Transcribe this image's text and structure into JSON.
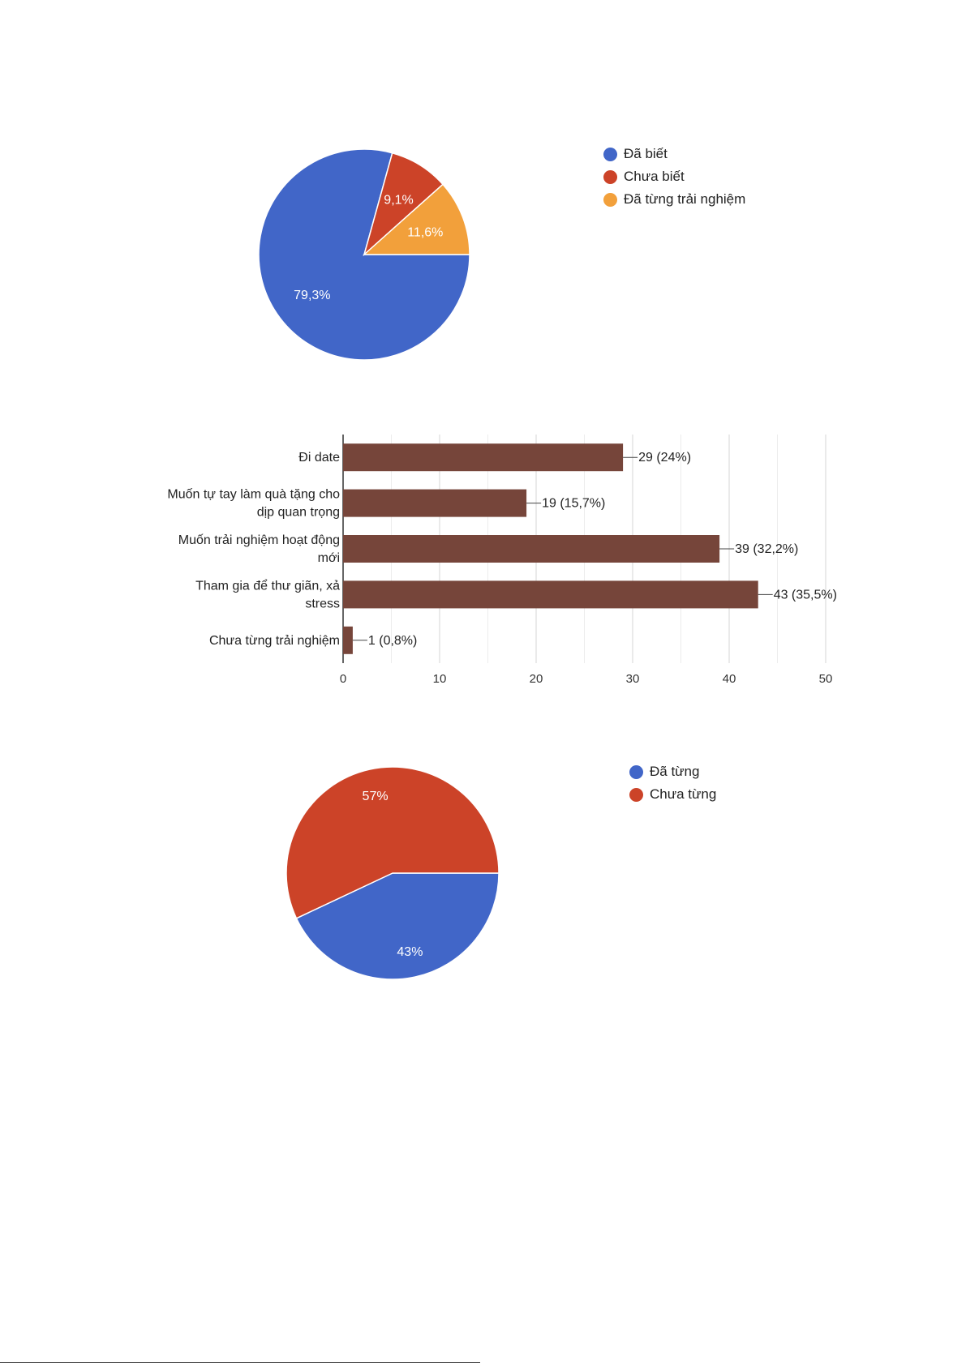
{
  "chart_data": [
    {
      "type": "pie",
      "labels": [
        "Đã biết",
        "Chưa biết",
        "Đã từng trải nghiệm"
      ],
      "values": [
        79.3,
        9.1,
        11.6
      ],
      "value_labels": [
        "79,3%",
        "9,1%",
        "11,6%"
      ],
      "colors": [
        "#4166c8",
        "#cc4328",
        "#f2a03b"
      ],
      "legend_position": "right"
    },
    {
      "type": "bar",
      "orientation": "horizontal",
      "categories": [
        [
          "Đi date"
        ],
        [
          "Muốn tự tay làm quà tặng cho",
          "dịp quan trọng"
        ],
        [
          "Muốn trải nghiệm hoạt động",
          "mới"
        ],
        [
          "Tham gia để thư giãn, xả",
          "stress"
        ],
        [
          "Chưa từng trải nghiệm"
        ]
      ],
      "values": [
        29,
        19,
        39,
        43,
        1
      ],
      "value_labels": [
        "29 (24%)",
        "19 (15,7%)",
        "39 (32,2%)",
        "43 (35,5%)",
        "1 (0,8%)"
      ],
      "xlim": [
        0,
        50
      ],
      "x_ticks": [
        "0",
        "10",
        "20",
        "30",
        "40",
        "50"
      ],
      "color": "#76453a",
      "grid": true
    },
    {
      "type": "pie",
      "labels": [
        "Đã từng",
        "Chưa từng"
      ],
      "values": [
        43,
        57
      ],
      "value_labels": [
        "43%",
        "57%"
      ],
      "colors": [
        "#4166c8",
        "#cc4328"
      ],
      "legend_position": "right"
    }
  ]
}
